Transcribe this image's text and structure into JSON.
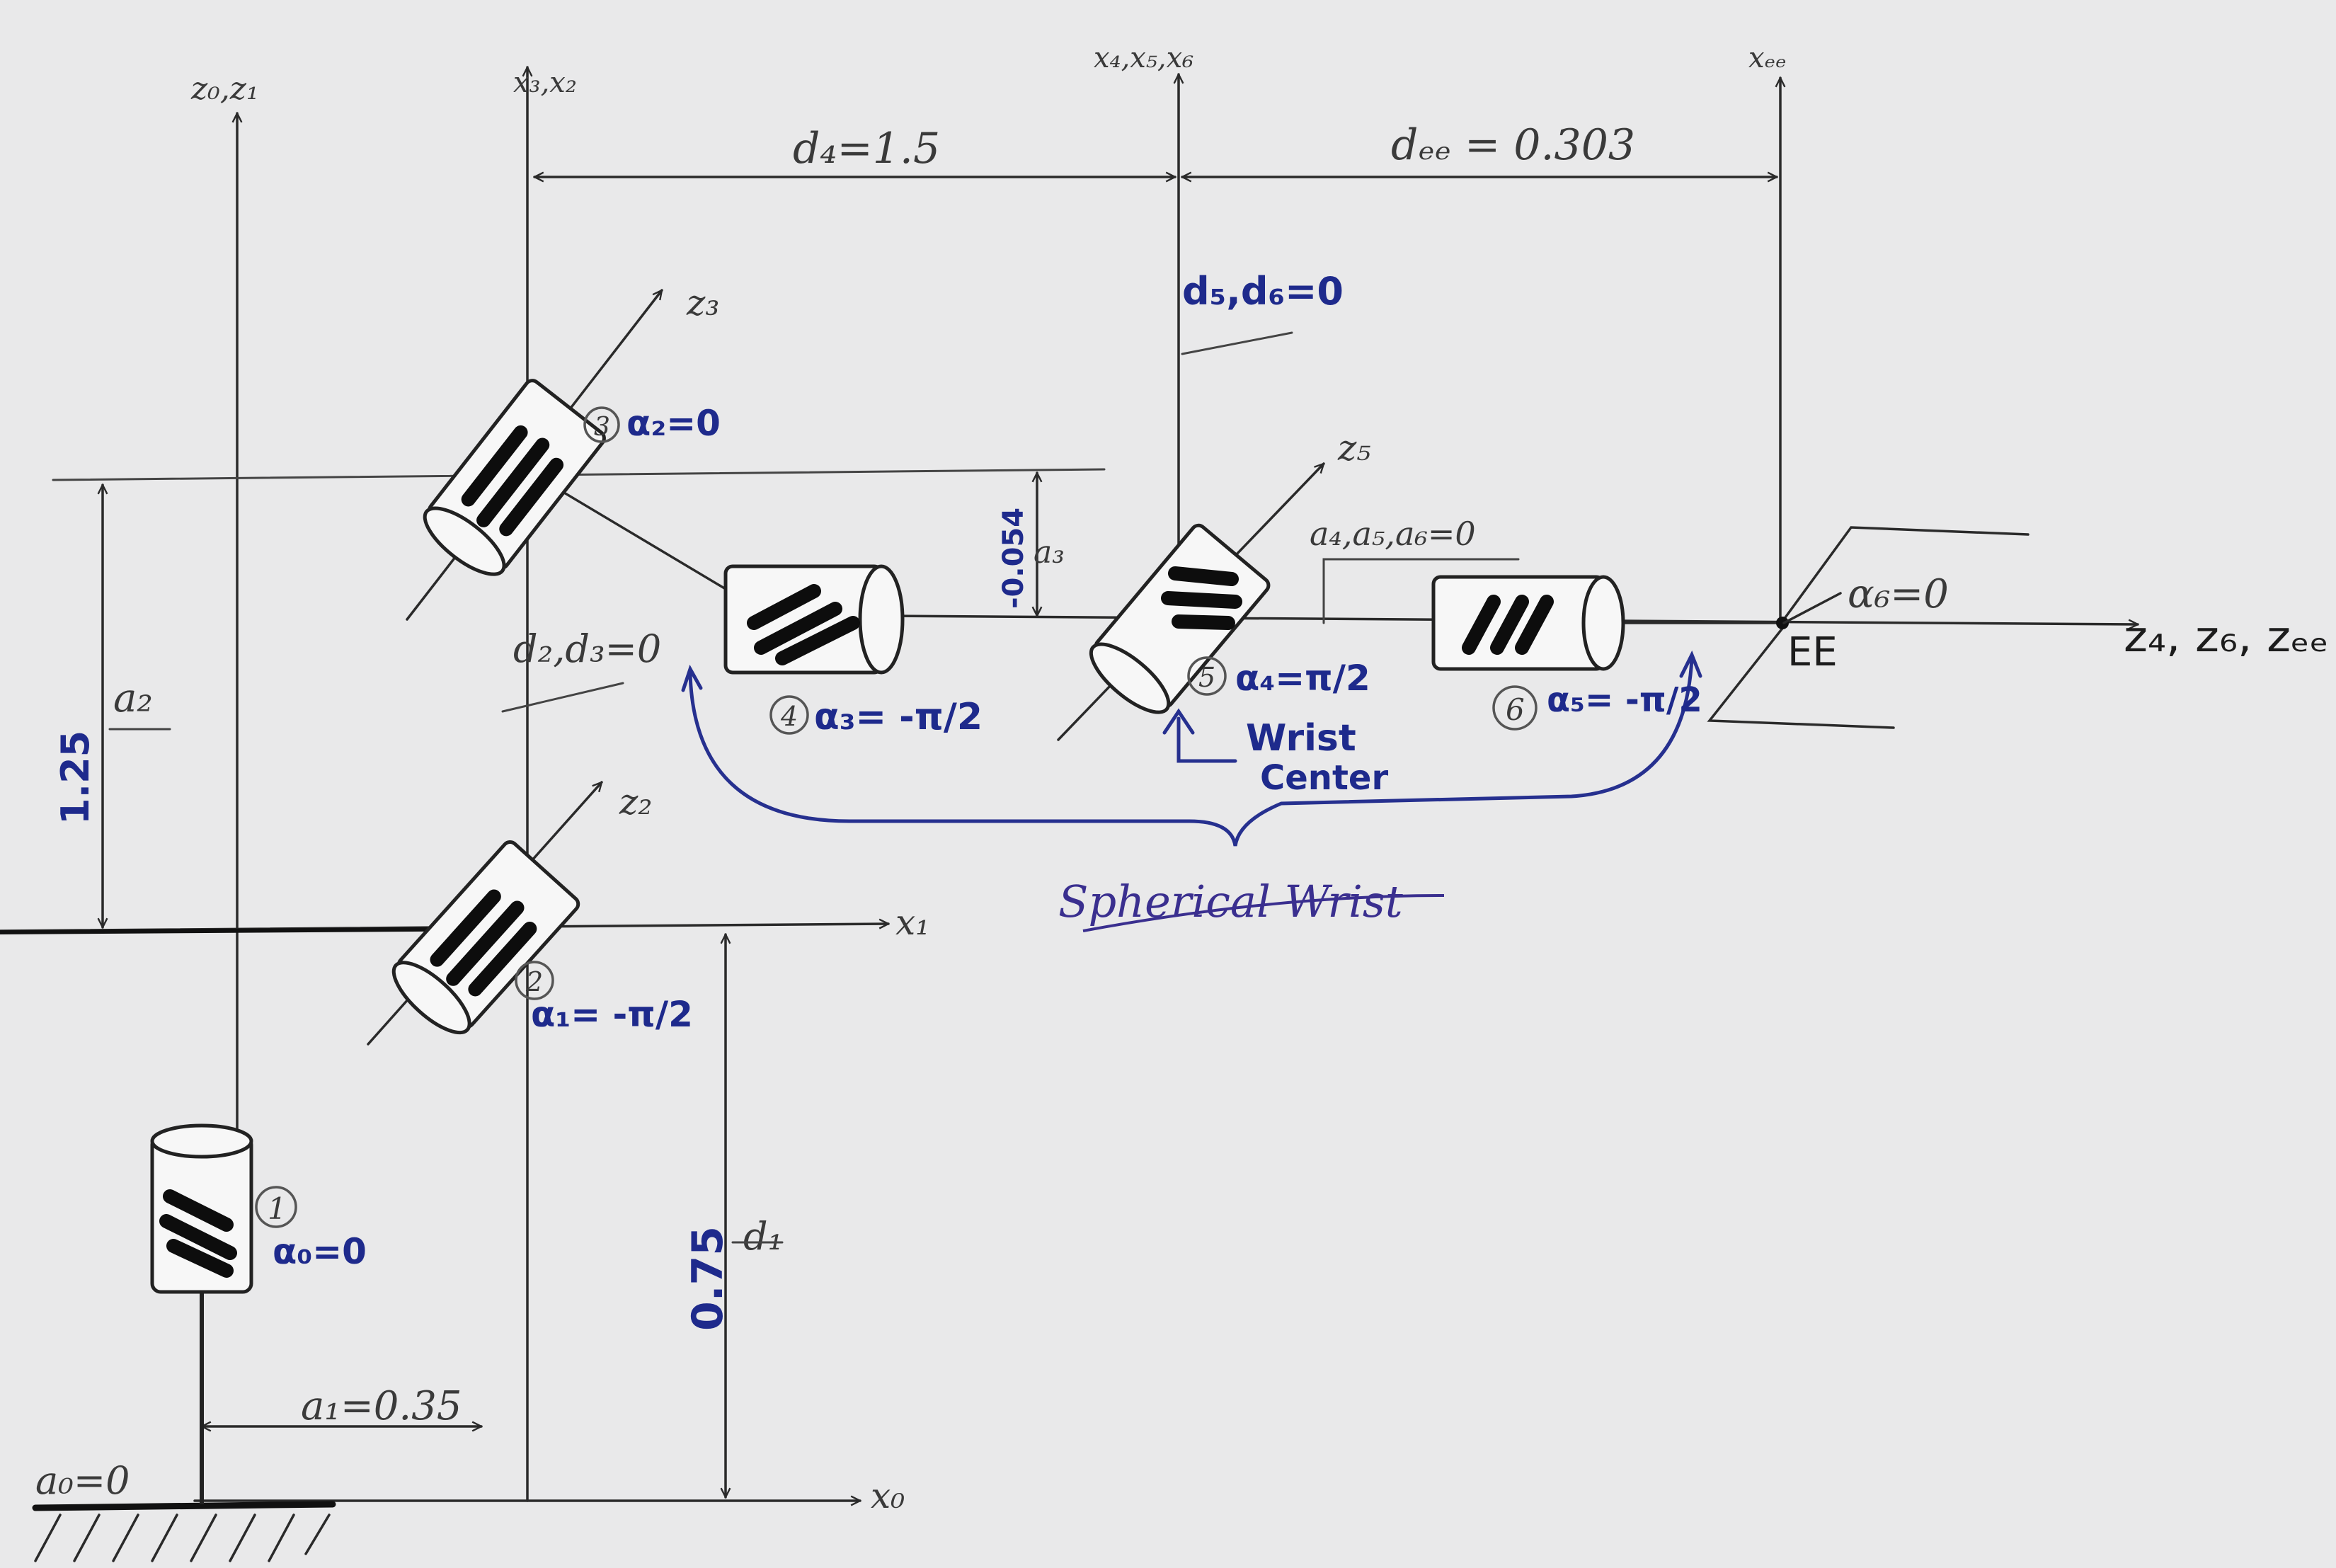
{
  "axes": {
    "z0_z1": "z₀,z₁",
    "x3_x2": "x₃,x₂",
    "x4_x5_x6": "x₄,x₅,x₆",
    "x_ee": "xₑₑ",
    "z3": "z₃",
    "z5": "z₅",
    "z2": "z₂",
    "x1": "x₁",
    "x0": "x₀",
    "z4_z6_zee": "z₄, z₆, zₑₑ"
  },
  "dimensions": {
    "d4": "d₄=1.5",
    "d_ee": "dₑₑ = 0.303",
    "d5_d6": "d₅,d₆=0",
    "d2_d3": "d₂,d₃=0",
    "a3_value": "-0.054",
    "a3_label": "a₃",
    "a2_label": "a₂",
    "a2_value": "1.25",
    "a4_a5_a6": "a₄,a₅,a₆=0",
    "d1_label": "d₁",
    "d1_value": "0.75",
    "a1": "a₁=0.35",
    "a0": "a₀=0"
  },
  "joints": [
    {
      "number": "1",
      "alpha": "α₀=0"
    },
    {
      "number": "2",
      "alpha": "α₁= -π/2"
    },
    {
      "number": "3",
      "alpha": "α₂=0"
    },
    {
      "number": "4",
      "alpha": "α₃= -π/2"
    },
    {
      "number": "5",
      "alpha": "α₄=π/2"
    },
    {
      "number": "6",
      "alpha": "α₅= -π/2"
    }
  ],
  "end_effector": {
    "label": "EE",
    "alpha6": "α₆=0"
  },
  "annotations": {
    "wrist_center_line1": "Wrist",
    "wrist_center_line2": "Center",
    "spherical_wrist": "Spherical Wrist"
  },
  "colors": {
    "paper": "#e9e9ea",
    "pencil": "#3a3a3a",
    "blue_ink": "#1e2a8c"
  }
}
